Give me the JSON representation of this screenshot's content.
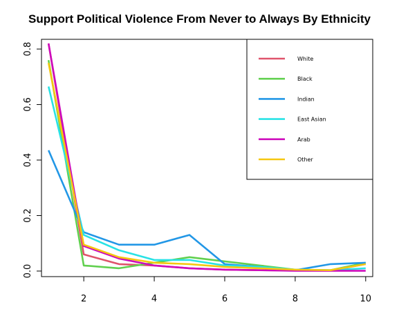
{
  "chart_data": {
    "type": "line",
    "title": "Support Political Violence From Never to Always By Ethnicity",
    "xlabel": "",
    "ylabel": "",
    "x": [
      1,
      2,
      3,
      4,
      5,
      6,
      7,
      8,
      9,
      10
    ],
    "xlim": [
      0.8,
      10.2
    ],
    "ylim": [
      -0.02,
      0.835
    ],
    "x_ticks": [
      2,
      4,
      6,
      8,
      10
    ],
    "y_ticks": [
      0.0,
      0.2,
      0.4,
      0.6,
      0.8
    ],
    "x_tick_labels": [
      "2",
      "4",
      "6",
      "8",
      "10"
    ],
    "y_tick_labels": [
      "0.0",
      "0.2",
      "0.4",
      "0.6",
      "0.8"
    ],
    "grid": false,
    "legend_position": "top-right",
    "series": [
      {
        "name": "White",
        "color": "#DF536B",
        "values": [
          0.82,
          0.06,
          0.025,
          0.02,
          0.01,
          0.005,
          0.003,
          0.002,
          0.002,
          0.025
        ]
      },
      {
        "name": "Black",
        "color": "#61D04F",
        "values": [
          0.76,
          0.02,
          0.01,
          0.03,
          0.05,
          0.035,
          0.02,
          0.005,
          0.003,
          0.03
        ]
      },
      {
        "name": "Indian",
        "color": "#2297E6",
        "values": [
          0.435,
          0.14,
          0.095,
          0.095,
          0.13,
          0.025,
          0.015,
          0.003,
          0.025,
          0.03
        ]
      },
      {
        "name": "East Asian",
        "color": "#28E2E5",
        "values": [
          0.665,
          0.13,
          0.075,
          0.04,
          0.04,
          0.02,
          0.015,
          0.005,
          0.003,
          0.01
        ]
      },
      {
        "name": "Arab",
        "color": "#CD0BBC",
        "values": [
          0.82,
          0.09,
          0.045,
          0.02,
          0.01,
          0.005,
          0.003,
          0.001,
          0.001,
          0.001
        ]
      },
      {
        "name": "Other",
        "color": "#F5C710",
        "values": [
          0.75,
          0.095,
          0.05,
          0.03,
          0.025,
          0.015,
          0.01,
          0.005,
          0.003,
          0.025
        ]
      }
    ]
  }
}
